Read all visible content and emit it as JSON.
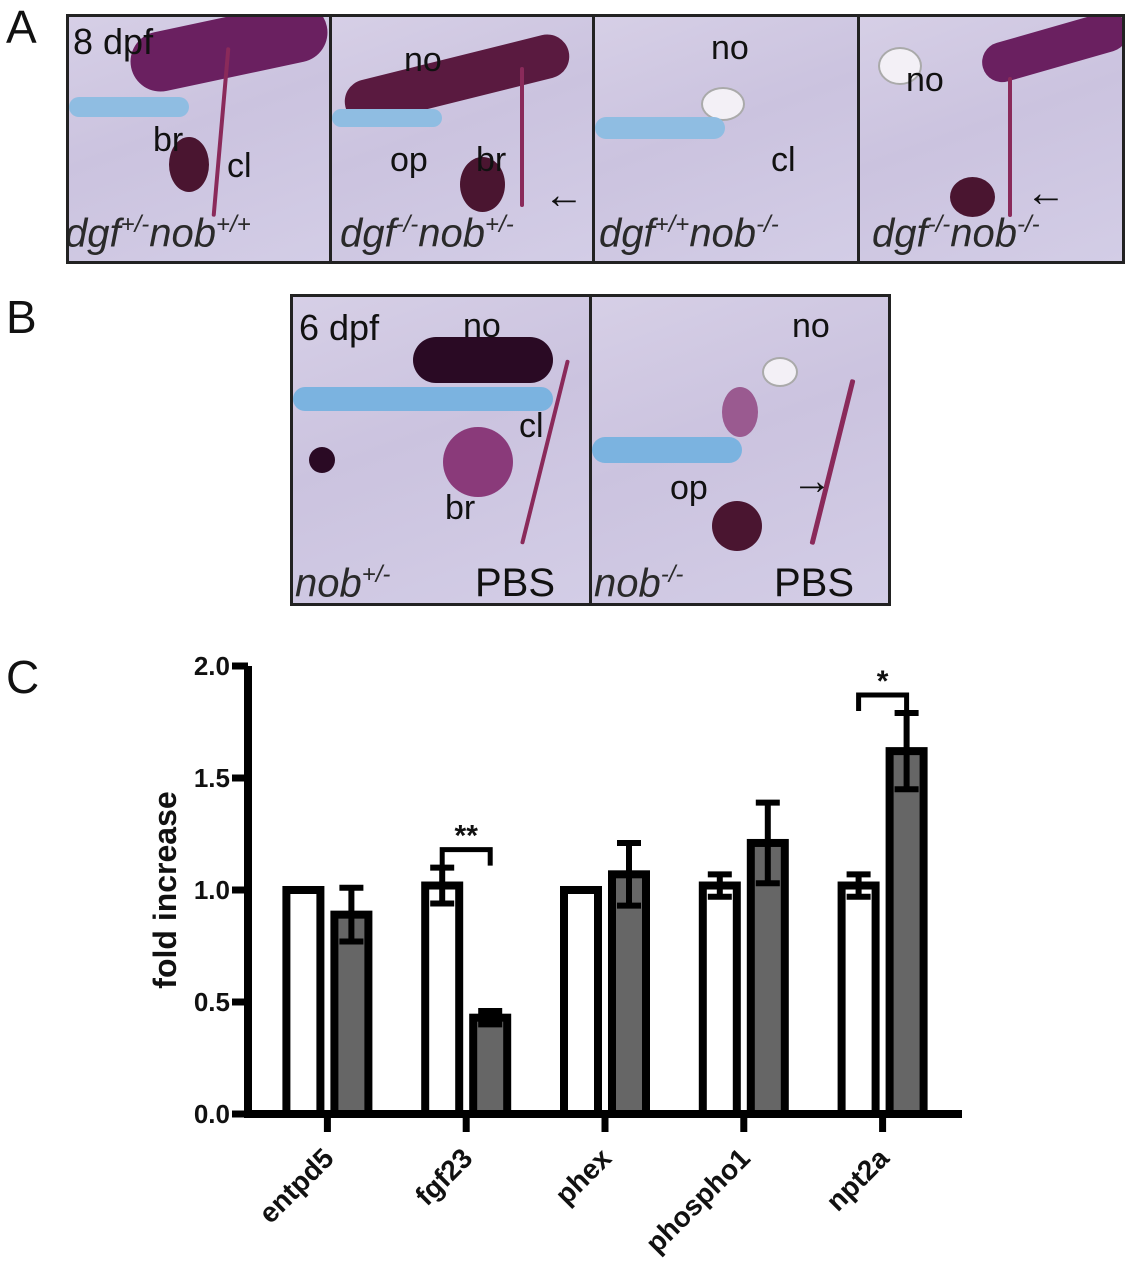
{
  "panels": {
    "A": {
      "letter": "A",
      "images": [
        {
          "stage": "8 dpf",
          "labels": [
            "br",
            "cl"
          ],
          "genotype_parts": [
            "dgf",
            "+/-",
            "nob",
            "+/+"
          ]
        },
        {
          "labels": [
            "no",
            "op",
            "br"
          ],
          "arrow": "←",
          "genotype_parts": [
            "dgf",
            "-/-",
            "nob",
            "+/-"
          ]
        },
        {
          "labels": [
            "no",
            "cl"
          ],
          "genotype_parts": [
            "dgf",
            "+/+",
            "nob",
            "-/-"
          ]
        },
        {
          "labels": [
            "no"
          ],
          "arrow": "←",
          "genotype_parts": [
            "dgf",
            "-/-",
            "nob",
            "-/-"
          ]
        }
      ]
    },
    "B": {
      "letter": "B",
      "images": [
        {
          "stage": "6 dpf",
          "labels": [
            "no",
            "cl",
            "br"
          ],
          "treatment": "PBS",
          "genotype_parts": [
            "nob",
            "+/-"
          ]
        },
        {
          "labels": [
            "no",
            "op"
          ],
          "arrow": "→",
          "treatment": "PBS",
          "genotype_parts": [
            "nob",
            "-/-"
          ]
        }
      ]
    },
    "C": {
      "letter": "C"
    }
  },
  "colors": {
    "stain_blue": "#5aa9de",
    "stain_purple": "#7a2a6a",
    "bar_dark": "#666666",
    "bar_light": "#ffffff",
    "axis": "#000000"
  },
  "chart_data": {
    "type": "bar",
    "ylabel": "fold increase",
    "ylim": [
      0,
      2.0
    ],
    "yticks": [
      "0.0",
      "0.5",
      "1.0",
      "1.5",
      "2.0"
    ],
    "categories": [
      "entpd5",
      "fgf23",
      "phex",
      "phospho1",
      "npt2a"
    ],
    "grid": false,
    "series": [
      {
        "fill": "#ffffff",
        "values": [
          1.0,
          1.02,
          1.0,
          1.02,
          1.02
        ],
        "errors": [
          0.0,
          0.08,
          0.0,
          0.05,
          0.05
        ]
      },
      {
        "fill": "#666666",
        "values": [
          0.89,
          0.43,
          1.07,
          1.21,
          1.62
        ],
        "errors": [
          0.12,
          0.03,
          0.14,
          0.18,
          0.17
        ]
      }
    ],
    "significance": [
      {
        "category": "fgf23",
        "text": "**"
      },
      {
        "category": "npt2a",
        "text": "*"
      }
    ]
  }
}
